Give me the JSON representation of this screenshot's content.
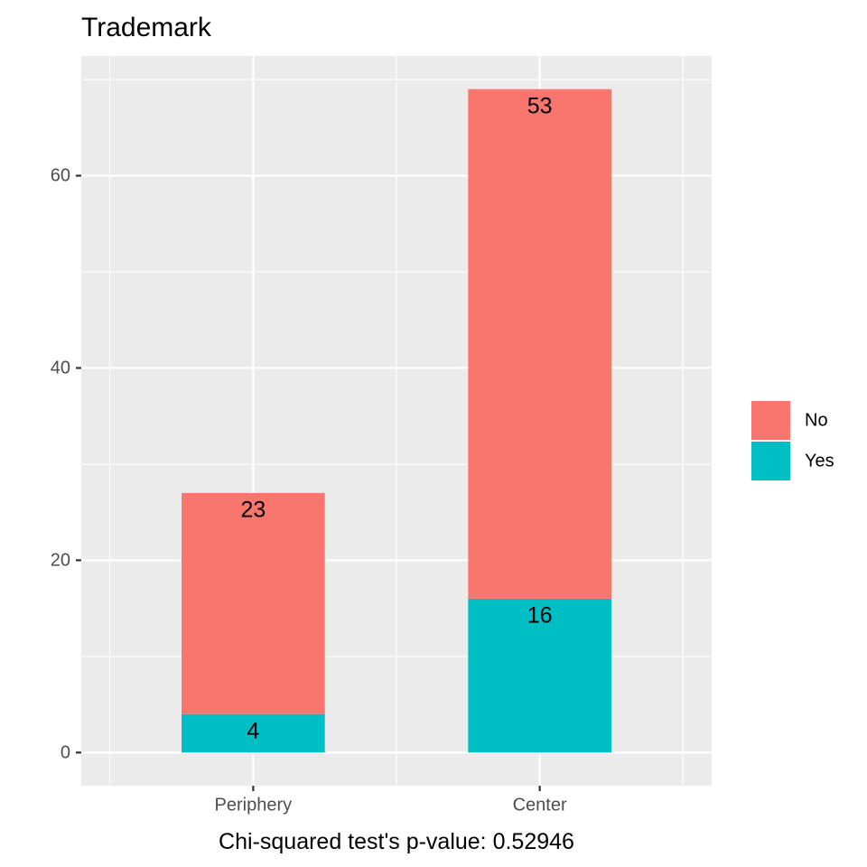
{
  "chart_data": {
    "type": "bar",
    "stacked": true,
    "title": "Trademark",
    "xlabel": "Chi-squared test's p-value: 0.52946",
    "ylabel": "",
    "categories": [
      "Periphery",
      "Center"
    ],
    "series": [
      {
        "name": "No",
        "values": [
          23,
          53
        ],
        "color": "#F8766D"
      },
      {
        "name": "Yes",
        "values": [
          4,
          16
        ],
        "color": "#00BFC4"
      }
    ],
    "ylim": [
      -3.45,
      72.45
    ],
    "yticks": [
      0,
      20,
      40,
      60
    ],
    "ytick_labels": [
      "0",
      "20",
      "40",
      "60"
    ],
    "grid": true,
    "legend_position": "right",
    "panel_background": "#EBEBEB",
    "grid_color": "#FFFFFF"
  }
}
